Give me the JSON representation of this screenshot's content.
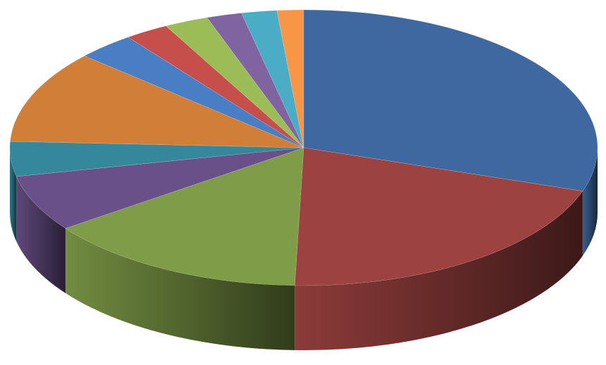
{
  "chart_data": {
    "type": "pie",
    "style": "3d",
    "title": "",
    "legend": "none",
    "data_labels": false,
    "slices": [
      {
        "value": 31.0,
        "color": "#4068A0"
      },
      {
        "value": 21.0,
        "color": "#9C4240"
      },
      {
        "value": 15.0,
        "color": "#7F9C48"
      },
      {
        "value": 6.8,
        "color": "#6A5088"
      },
      {
        "value": 4.2,
        "color": "#35879C"
      },
      {
        "value": 11.2,
        "color": "#D17E38"
      },
      {
        "value": 3.3,
        "color": "#4A7EC4"
      },
      {
        "value": 2.5,
        "color": "#C64E4B"
      },
      {
        "value": 2.5,
        "color": "#9CBC58"
      },
      {
        "value": 2.0,
        "color": "#8064A2"
      },
      {
        "value": 2.0,
        "color": "#4BACC6"
      },
      {
        "value": 1.5,
        "color": "#F79646"
      }
    ]
  }
}
